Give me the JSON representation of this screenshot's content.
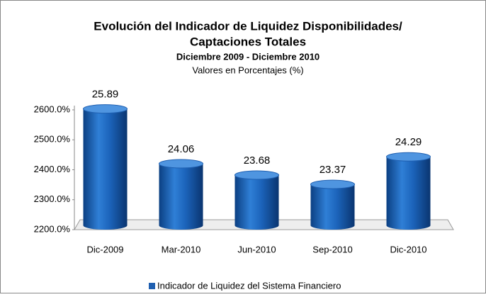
{
  "chart_data": {
    "type": "bar",
    "title": [
      "Evolución del  Indicador de Liquidez Disponibilidades/",
      "Captaciones Totales"
    ],
    "subtitle": "Diciembre 2009 -  Diciembre 2010",
    "note": "Valores en Porcentajes (%)",
    "categories": [
      "Dic-2009",
      "Mar-2010",
      "Jun-2010",
      "Sep-2010",
      "Dic-2010"
    ],
    "series": [
      {
        "name": "Indicador de Liquidez del Sistema Financiero",
        "color": "#1f5fb0",
        "values": [
          25.89,
          24.06,
          23.68,
          23.37,
          24.29
        ]
      }
    ],
    "ylim": [
      22,
      26
    ],
    "yticks": [
      {
        "value": 22,
        "label": "2200.0%"
      },
      {
        "value": 23,
        "label": "2300.0%"
      },
      {
        "value": 24,
        "label": "2400.0%"
      },
      {
        "value": 25,
        "label": "2500.0%"
      },
      {
        "value": 26,
        "label": "2600.0%"
      }
    ],
    "legend": "bottom"
  }
}
